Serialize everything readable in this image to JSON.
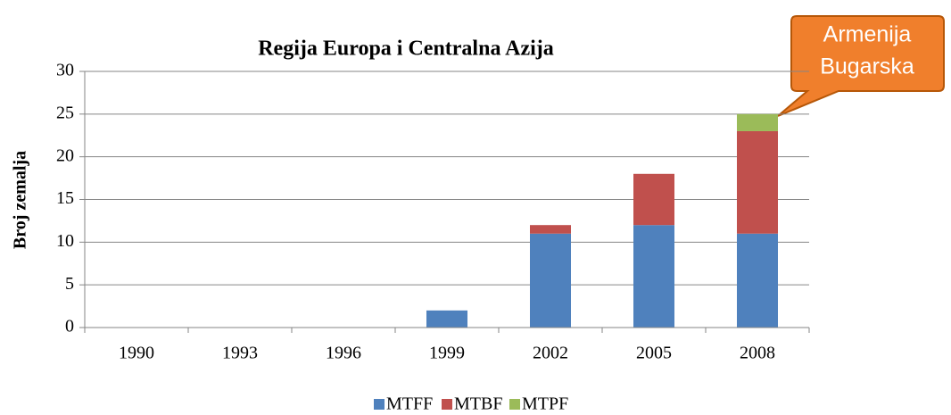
{
  "chart_data": {
    "type": "stacked_bar",
    "title": "Regija Europa i Centralna Azija",
    "y_label": "Broj zemalja",
    "categories": [
      "1990",
      "1993",
      "1996",
      "1999",
      "2002",
      "2005",
      "2008"
    ],
    "series": [
      {
        "name": "MTFF",
        "color": "#4f81bd",
        "values": [
          0,
          0,
          0,
          2,
          11,
          12,
          11
        ]
      },
      {
        "name": "MTBF",
        "color": "#c0504d",
        "values": [
          0,
          0,
          0,
          0,
          1,
          6,
          12
        ]
      },
      {
        "name": "MTPF",
        "color": "#9bbb59",
        "values": [
          0,
          0,
          0,
          0,
          0,
          0,
          2
        ]
      }
    ],
    "ylim": [
      0,
      30
    ],
    "yticks": [
      0,
      5,
      10,
      15,
      20,
      25,
      30
    ],
    "grid": true,
    "legend": "bottom",
    "annotation": [
      "Armenija",
      "Bugarska"
    ]
  }
}
